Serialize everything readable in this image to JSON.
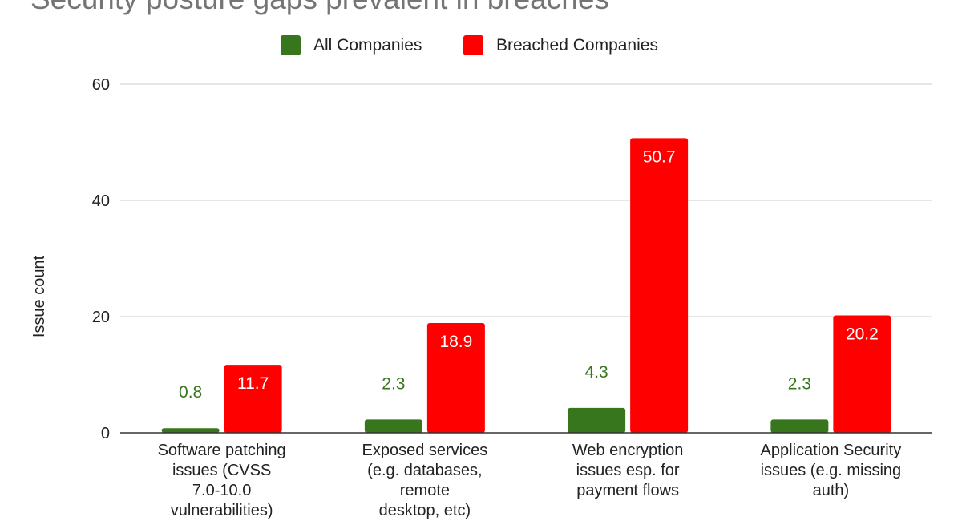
{
  "chart_data": {
    "type": "bar",
    "title": "Security posture gaps prevalent in breaches",
    "xlabel": "",
    "ylabel": "Issue count",
    "ylim": [
      0,
      60
    ],
    "yticks": [
      0,
      20,
      40,
      60
    ],
    "grid": true,
    "legend_position": "top",
    "categories": [
      [
        "Software patching",
        "issues (CVSS",
        "7.0-10.0",
        "vulnerabilities)"
      ],
      [
        "Exposed services",
        "(e.g. databases,",
        "remote",
        "desktop, etc)"
      ],
      [
        "Web encryption",
        "issues esp. for",
        "payment flows"
      ],
      [
        "Application Security",
        "issues (e.g. missing",
        "auth)"
      ]
    ],
    "series": [
      {
        "name": "All Companies",
        "color": "#38761d",
        "values": [
          0.8,
          2.3,
          4.3,
          2.3
        ]
      },
      {
        "name": "Breached Companies",
        "color": "#ff0000",
        "values": [
          11.7,
          18.9,
          50.7,
          20.2
        ]
      }
    ]
  }
}
